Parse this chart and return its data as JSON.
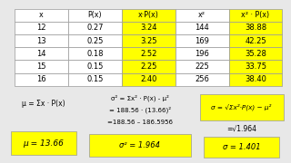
{
  "table": {
    "headers": [
      "x",
      "P(x)",
      "x·P(x)",
      "x²",
      "x² · P(x)"
    ],
    "rows": [
      [
        "12",
        "0.27",
        "3.24",
        "144",
        "38.88"
      ],
      [
        "13",
        "0.25",
        "3.25",
        "169",
        "42.25"
      ],
      [
        "14",
        "0.18",
        "2.52",
        "196",
        "35.28"
      ],
      [
        "15",
        "0.15",
        "2.25",
        "225",
        "33.75"
      ],
      [
        "16",
        "0.15",
        "2.40",
        "256",
        "38.40"
      ]
    ],
    "highlight_cols": [
      2,
      4
    ],
    "highlight_color": "#FFFF00"
  },
  "formulas": {
    "mu_formula": "μ = Σx · P(x)",
    "mu_value": "μ = 13.66",
    "sigma2_line1": "σ² = Σx² · P(x) - μ²",
    "sigma2_line2": "= 188.56 · (13.66)²",
    "sigma2_line3": "=188.56 – 186.5956",
    "sigma2_value": "σ² = 1.964",
    "sigma_formula": "σ = √Σx² · P(x) − μ²",
    "sigma_line1": "=√1.964",
    "sigma_value": "σ = 1.401"
  },
  "bg_color": "#e8e8e8",
  "highlight_yellow": "#FFFF00",
  "box_bg": "#ffffff",
  "border_color": "#999999"
}
